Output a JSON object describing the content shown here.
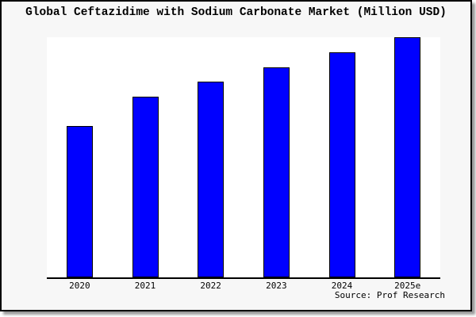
{
  "ui": {
    "title": "Global Ceftazidime with Sodium Carbonate Market (Million USD)",
    "source_text": "Source: Prof Research"
  },
  "colors": {
    "bar_fill": "#0000FF",
    "bar_border": "#000000",
    "axis_line": "#000000",
    "frame_background": "#F7F7F7",
    "plot_background": "#FFFFFF",
    "frame_border": "#000000",
    "drop_shadow": "#999999",
    "text": "#000000"
  },
  "chart_data": {
    "type": "bar",
    "title": "Global Ceftazidime with Sodium Carbonate Market (Million USD)",
    "categories": [
      "2020",
      "2021",
      "2022",
      "2023",
      "2024",
      "2025e"
    ],
    "series": [
      {
        "name": "Market size (Million USD)",
        "values": [
          62.8,
          75.1,
          81.4,
          87.5,
          93.7,
          100
        ]
      }
    ],
    "xlabel": "",
    "ylabel": "",
    "ylim": [
      0,
      100
    ],
    "y_axis_tick_labels_visible": false,
    "gridlines": false,
    "legend_visible": false,
    "bar_color": "#0000FF",
    "note": "Y-axis is unlabeled in the image; values are pixel-estimated relative heights normalized to 2025e = 100.",
    "source": "Source: Prof Research"
  }
}
